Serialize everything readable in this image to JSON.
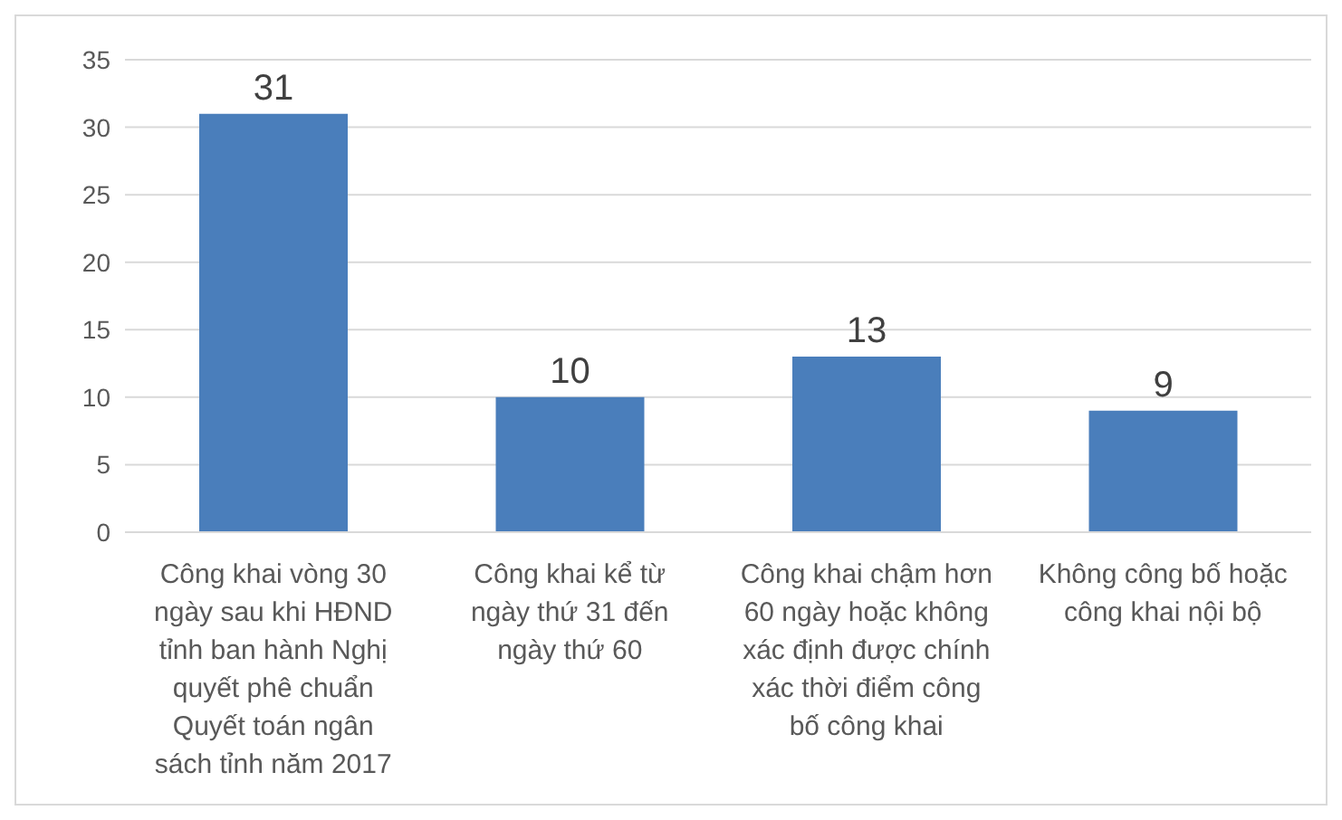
{
  "chart_data": {
    "type": "bar",
    "categories": [
      "Công khai vòng 30 ngày sau khi HĐND tỉnh ban hành Nghị quyết phê chuẩn Quyết toán ngân sách tỉnh năm 2017",
      "Công khai kể từ ngày thứ 31 đến ngày thứ 60",
      "Công khai chậm hơn 60 ngày hoặc không xác định được chính xác thời điểm công bố công khai",
      "Không công bố hoặc công khai nội bộ"
    ],
    "values": [
      31,
      10,
      13,
      9
    ],
    "color": "#4a7ebb",
    "data_labels": true,
    "ylim": [
      0,
      35
    ],
    "yticks": [
      0,
      5,
      10,
      15,
      20,
      25,
      30,
      35
    ],
    "grid": "y"
  }
}
